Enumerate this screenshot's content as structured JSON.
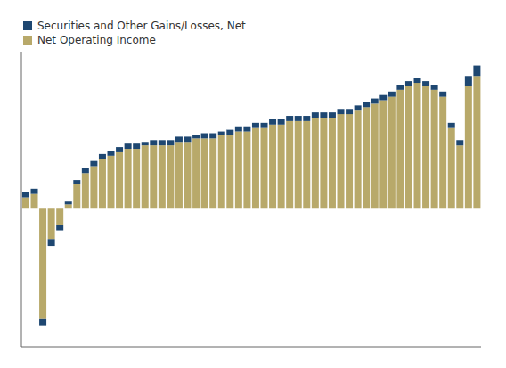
{
  "chart_data": {
    "type": "bar",
    "stacked": true,
    "tick_labels": false,
    "legend": "upper left",
    "ylim": [
      -40,
      45
    ],
    "categories": [
      null,
      null,
      null,
      null,
      null,
      null,
      null,
      null,
      null,
      null,
      null,
      null,
      null,
      null,
      null,
      null,
      null,
      null,
      null,
      null,
      null,
      null,
      null,
      null,
      null,
      null,
      null,
      null,
      null,
      null,
      null,
      null,
      null,
      null,
      null,
      null,
      null,
      null,
      null,
      null,
      null,
      null,
      null,
      null,
      null,
      null,
      null,
      null,
      null,
      null,
      null,
      null,
      null,
      null
    ],
    "series": [
      {
        "name": "Net Operating Income",
        "color": "#b8a96a",
        "values": [
          3,
          4,
          -32,
          -9,
          -5,
          1,
          7,
          10,
          12,
          14,
          15,
          16,
          17,
          17,
          18,
          18,
          18,
          18,
          19,
          19,
          20,
          20,
          20,
          21,
          21,
          22,
          22,
          23,
          23,
          24,
          24,
          25,
          25,
          25,
          26,
          26,
          26,
          27,
          27,
          28,
          29,
          30,
          31,
          32,
          34,
          35,
          36,
          35,
          34,
          32,
          23,
          18,
          35,
          38
        ]
      },
      {
        "name": "Securities and Other Gains/Losses, Net",
        "color": "#1e4771",
        "values": [
          1.5,
          1.5,
          -2,
          -2,
          -1.5,
          0.8,
          1,
          1.5,
          1.5,
          1.5,
          1.5,
          1.5,
          1.5,
          1.5,
          1,
          1.5,
          1.5,
          1.5,
          1.5,
          1.5,
          1,
          1.5,
          1.5,
          1,
          1.5,
          1.5,
          1.5,
          1.5,
          1.5,
          1.5,
          1.5,
          1.5,
          1.5,
          1.5,
          1.5,
          1.5,
          1.5,
          1.5,
          1.5,
          1.5,
          1.5,
          1.5,
          1.5,
          1.5,
          1.5,
          1.5,
          1.5,
          1.5,
          1.5,
          1.5,
          1.5,
          1.5,
          3,
          3
        ]
      }
    ]
  }
}
